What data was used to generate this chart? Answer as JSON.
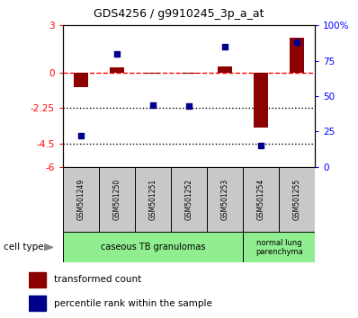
{
  "title": "GDS4256 / g9910245_3p_a_at",
  "samples": [
    "GSM501249",
    "GSM501250",
    "GSM501251",
    "GSM501252",
    "GSM501253",
    "GSM501254",
    "GSM501255"
  ],
  "red_values": [
    -0.9,
    0.35,
    -0.05,
    -0.05,
    0.4,
    -3.5,
    2.2
  ],
  "blue_values": [
    22,
    80,
    44,
    43,
    85,
    15,
    88
  ],
  "ylim_left": [
    -6,
    3
  ],
  "ylim_right": [
    0,
    100
  ],
  "yticks_left": [
    3,
    0,
    -2.25,
    -4.5,
    -6
  ],
  "ytick_labels_left": [
    "3",
    "0",
    "-2.25",
    "-4.5",
    "-6"
  ],
  "yticks_right": [
    100,
    75,
    50,
    25,
    0
  ],
  "ytick_labels_right": [
    "100%",
    "75",
    "50",
    "25",
    "0"
  ],
  "hlines": [
    0,
    -2.25,
    -4.5
  ],
  "hline_styles": [
    "dashed",
    "dotted",
    "dotted"
  ],
  "hline_colors": [
    "red",
    "black",
    "black"
  ],
  "group1_label": "caseous TB granulomas",
  "group1_indices": [
    0,
    1,
    2,
    3,
    4
  ],
  "group2_label": "normal lung\nparenchyma",
  "group2_indices": [
    5,
    6
  ],
  "cell_type_label": "cell type",
  "legend_red": "transformed count",
  "legend_blue": "percentile rank within the sample",
  "bar_width": 0.4,
  "red_color": "#8B0000",
  "blue_color": "#00008B",
  "group1_bg": "#90EE90",
  "group2_bg": "#90EE90",
  "sample_bg": "#C8C8C8"
}
